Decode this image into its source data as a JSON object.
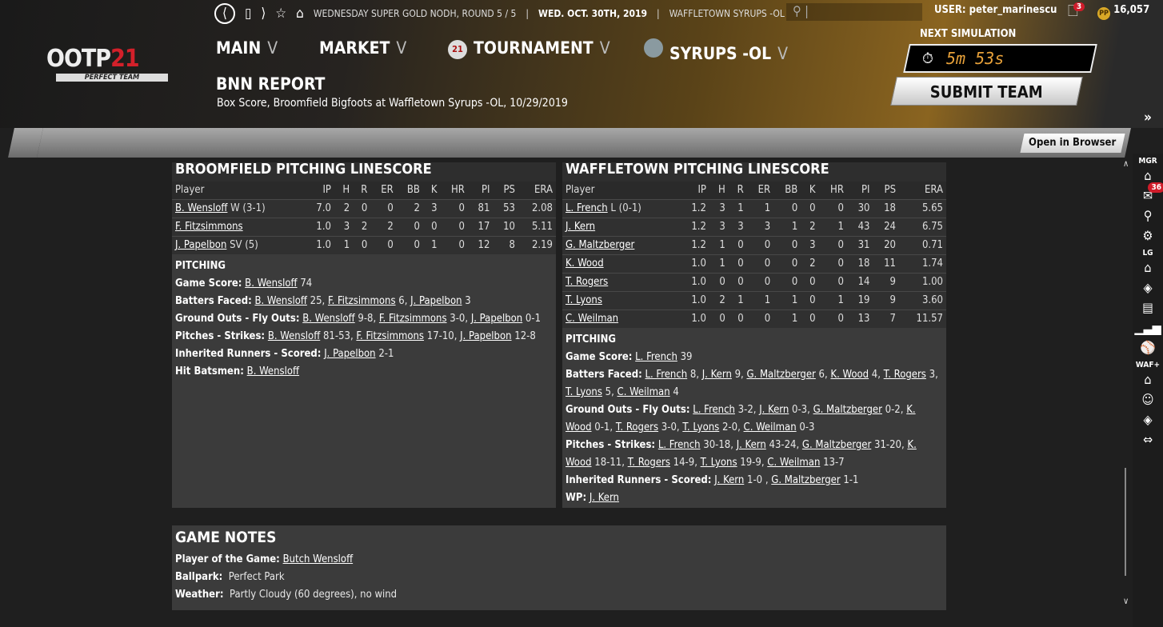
{
  "topbar": {
    "context": "WEDNESDAY SUPER GOLD NODH, ROUND 5 / 5",
    "date": "WED. OCT. 30TH, 2019",
    "team": "WAFFLETOWN SYRUPS -OL",
    "user": "USER: peter_marinescu",
    "notifications": "3",
    "coins": "16,057"
  },
  "logo": {
    "text": "OOTP",
    "num": "21",
    "sub": "PERFECT TEAM"
  },
  "nav": [
    {
      "label": "MAIN"
    },
    {
      "label": "MARKET"
    },
    {
      "label": "TOURNAMENT",
      "badge": "21"
    },
    {
      "label": "SYRUPS -OL"
    }
  ],
  "page": {
    "title": "BNN REPORT",
    "subtitle": "Box Score, Broomfield Bigfoots at Waffletown Syrups -OL, 10/29/2019"
  },
  "sim": {
    "label": "NEXT SIMULATION",
    "timer": "5m 53s",
    "submit": "SUBMIT TEAM"
  },
  "toolbar": {
    "open_browser": "Open in Browser"
  },
  "columns": [
    "Player",
    "IP",
    "H",
    "R",
    "ER",
    "BB",
    "K",
    "HR",
    "PI",
    "PS",
    "ERA"
  ],
  "left": {
    "title": "BROOMFIELD PITCHING LINESCORE",
    "rows": [
      [
        "B. Wensloff",
        "W (3-1)",
        "7.0",
        "2",
        "0",
        "0",
        "2",
        "3",
        "0",
        "81",
        "53",
        "2.08"
      ],
      [
        "F. Fitzsimmons",
        "",
        "1.0",
        "3",
        "2",
        "2",
        "0",
        "0",
        "0",
        "17",
        "10",
        "5.11"
      ],
      [
        "J. Papelbon",
        "SV (5)",
        "1.0",
        "1",
        "0",
        "0",
        "0",
        "1",
        "0",
        "12",
        "8",
        "2.19"
      ]
    ],
    "pitching_header": "PITCHING",
    "notes": [
      {
        "label": "Game Score:",
        "items": [
          [
            "B. Wensloff",
            "74"
          ]
        ]
      },
      {
        "label": "Batters Faced:",
        "items": [
          [
            "B. Wensloff",
            "25,"
          ],
          [
            "F. Fitzsimmons",
            "6,"
          ],
          [
            "J. Papelbon",
            "3"
          ]
        ]
      },
      {
        "label": "Ground Outs - Fly Outs:",
        "items": [
          [
            "B. Wensloff",
            "9-8,"
          ],
          [
            "F. Fitzsimmons",
            "3-0,"
          ],
          [
            "J. Papelbon",
            "0-1"
          ]
        ]
      },
      {
        "label": "Pitches - Strikes:",
        "items": [
          [
            "B. Wensloff",
            "81-53,"
          ],
          [
            "F. Fitzsimmons",
            "17-10,"
          ],
          [
            "J. Papelbon",
            "12-8"
          ]
        ]
      },
      {
        "label": "Inherited Runners - Scored:",
        "items": [
          [
            "J. Papelbon",
            "2-1"
          ]
        ]
      },
      {
        "label": "Hit Batsmen:",
        "items": [
          [
            "B. Wensloff",
            ""
          ]
        ]
      }
    ]
  },
  "right": {
    "title": "WAFFLETOWN PITCHING LINESCORE",
    "rows": [
      [
        "L. French",
        "L (0-1)",
        "1.2",
        "3",
        "1",
        "1",
        "0",
        "0",
        "0",
        "30",
        "18",
        "5.65"
      ],
      [
        "J. Kern",
        "",
        "1.2",
        "3",
        "3",
        "3",
        "1",
        "2",
        "1",
        "43",
        "24",
        "6.75"
      ],
      [
        "G. Maltzberger",
        "",
        "1.2",
        "1",
        "0",
        "0",
        "0",
        "3",
        "0",
        "31",
        "20",
        "0.71"
      ],
      [
        "K. Wood",
        "",
        "1.0",
        "1",
        "0",
        "0",
        "0",
        "2",
        "0",
        "18",
        "11",
        "1.74"
      ],
      [
        "T. Rogers",
        "",
        "1.0",
        "0",
        "0",
        "0",
        "0",
        "0",
        "0",
        "14",
        "9",
        "1.00"
      ],
      [
        "T. Lyons",
        "",
        "1.0",
        "2",
        "1",
        "1",
        "1",
        "0",
        "1",
        "19",
        "9",
        "3.60"
      ],
      [
        "C. Weilman",
        "",
        "1.0",
        "0",
        "0",
        "0",
        "1",
        "0",
        "0",
        "13",
        "7",
        "11.57"
      ]
    ],
    "pitching_header": "PITCHING",
    "notes": [
      {
        "label": "Game Score:",
        "items": [
          [
            "L. French",
            "39"
          ]
        ]
      },
      {
        "label": "Batters Faced:",
        "items": [
          [
            "L. French",
            "8,"
          ],
          [
            "J. Kern",
            "9,"
          ],
          [
            "G. Maltzberger",
            "6,"
          ],
          [
            "K. Wood",
            "4,"
          ],
          [
            "T. Rogers",
            "3,"
          ],
          [
            "T. Lyons",
            "5,"
          ],
          [
            "C. Weilman",
            "4"
          ]
        ]
      },
      {
        "label": "Ground Outs - Fly Outs:",
        "items": [
          [
            "L. French",
            "3-2,"
          ],
          [
            "J. Kern",
            "0-3,"
          ],
          [
            "G. Maltzberger",
            "0-2,"
          ],
          [
            "K. Wood",
            "0-1,"
          ],
          [
            "T. Rogers",
            "3-0,"
          ],
          [
            "T. Lyons",
            "2-0,"
          ],
          [
            "C. Weilman",
            "0-3"
          ]
        ]
      },
      {
        "label": "Pitches - Strikes:",
        "items": [
          [
            "L. French",
            "30-18,"
          ],
          [
            "J. Kern",
            "43-24,"
          ],
          [
            "G. Maltzberger",
            "31-20,"
          ],
          [
            "K. Wood",
            "18-11,"
          ],
          [
            "T. Rogers",
            "14-9,"
          ],
          [
            "T. Lyons",
            "19-9,"
          ],
          [
            "C. Weilman",
            "13-7"
          ]
        ]
      },
      {
        "label": "Inherited Runners - Scored:",
        "items": [
          [
            "J. Kern",
            "1-0 ,"
          ],
          [
            "G. Maltzberger",
            "1-1"
          ]
        ]
      },
      {
        "label": "WP:",
        "items": [
          [
            "J. Kern",
            ""
          ]
        ]
      }
    ]
  },
  "game_notes": {
    "title": "GAME NOTES",
    "potg_label": "Player of the Game:",
    "potg": "Butch Wensloff",
    "ballpark_label": "Ballpark:",
    "ballpark": "Perfect Park",
    "weather_label": "Weather:",
    "weather": "Partly Cloudy (60 degrees), no wind"
  },
  "sidebar": {
    "groups": [
      {
        "label": "MGR",
        "icons": [
          "home-icon",
          "mail-icon",
          "search-icon",
          "gear-icon"
        ],
        "mail_badge": "36"
      },
      {
        "label": "LG",
        "icons": [
          "home-icon",
          "diamond-icon",
          "card-icon",
          "bar-chart-icon",
          "baseball-icon"
        ]
      },
      {
        "label": "WAF+",
        "icons": [
          "home-icon",
          "player-icon",
          "diamond-icon",
          "trade-icon"
        ]
      }
    ]
  }
}
